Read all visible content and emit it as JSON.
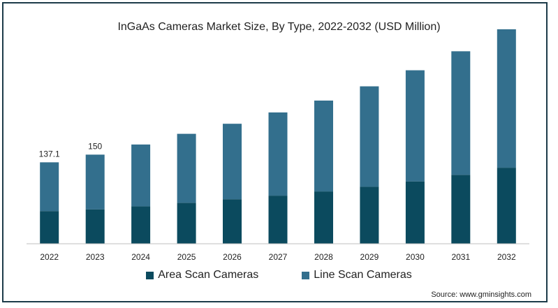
{
  "title": "InGaAs Cameras Market Size, By Type, 2022-2032 (USD Million)",
  "source": "Source: www.gminsights.com",
  "colors": {
    "area_scan": "#0b4a5e",
    "line_scan": "#336f8d",
    "axis": "#bfbfbf",
    "frame": "#1c3b49"
  },
  "chart_data": {
    "type": "bar",
    "stacked": true,
    "title": "InGaAs Cameras Market Size, By Type, 2022-2032 (USD Million)",
    "categories": [
      "2022",
      "2023",
      "2024",
      "2025",
      "2026",
      "2027",
      "2028",
      "2029",
      "2030",
      "2031",
      "2032"
    ],
    "series": [
      {
        "name": "Area Scan Cameras",
        "color": "#0b4a5e",
        "values": [
          55,
          58,
          63,
          69,
          75,
          81,
          88,
          96,
          105,
          116,
          128
        ]
      },
      {
        "name": "Line Scan Cameras",
        "color": "#336f8d",
        "values": [
          82.1,
          92,
          104,
          116,
          127,
          140,
          153,
          169,
          187,
          208,
          233
        ]
      }
    ],
    "data_labels": [
      {
        "category": "2022",
        "text": "137.1"
      },
      {
        "category": "2023",
        "text": "150"
      }
    ],
    "ylim": [
      0,
      375
    ],
    "legend_position": "bottom",
    "grid": false
  }
}
